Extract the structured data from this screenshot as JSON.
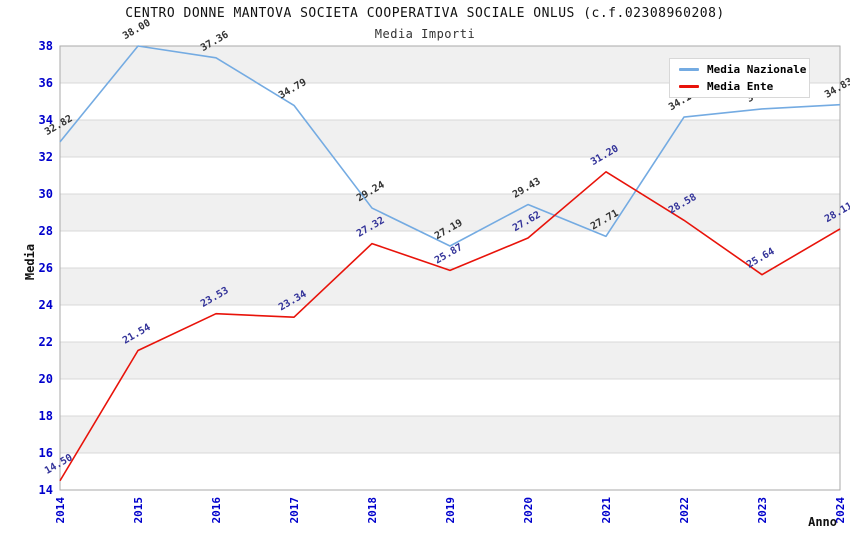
{
  "header": {
    "title": "CENTRO DONNE MANTOVA SOCIETA COOPERATIVA SOCIALE ONLUS (c.f.02308960208)",
    "subtitle": "Media Importi"
  },
  "axes": {
    "x_title": "Anno",
    "y_title": "Media"
  },
  "legend": {
    "position": "top-right",
    "items": [
      {
        "label": "Media Nazionale",
        "color_key": "nazionale"
      },
      {
        "label": "Media Ente",
        "color_key": "ente"
      }
    ]
  },
  "colors": {
    "nazionale": "#74abe2",
    "ente": "#e8130a",
    "label_nazionale": "#333333",
    "label_ente": "#333399",
    "axis_tick_text": "#0000cc",
    "band": "#f0f0f0",
    "grid": "#d8d8d8",
    "border": "#aaaaaa",
    "background": "#ffffff"
  },
  "chart_data": {
    "type": "line",
    "title": "CENTRO DONNE MANTOVA SOCIETA COOPERATIVA SOCIALE ONLUS (c.f.02308960208)",
    "subtitle": "Media Importi",
    "xlabel": "Anno",
    "ylabel": "Media",
    "x": [
      2014,
      2015,
      2016,
      2017,
      2018,
      2019,
      2020,
      2021,
      2022,
      2023,
      2024
    ],
    "ylim": [
      14,
      38
    ],
    "ytick_step": 2,
    "grid": "horizontal-bands",
    "legend_position": "top-right",
    "series": [
      {
        "name": "Media Nazionale",
        "color_key": "nazionale",
        "values": [
          32.82,
          38.0,
          37.36,
          34.79,
          29.24,
          27.19,
          29.43,
          27.71,
          34.16,
          34.6,
          34.83
        ],
        "labels": [
          "32.82",
          "38.00",
          "37.36",
          "34.79",
          "29.24",
          "27.19",
          "29.43",
          "27.71",
          "34.16",
          "34.60",
          "34.83"
        ],
        "labels_hidden_by_legend": [
          8,
          9
        ]
      },
      {
        "name": "Media Ente",
        "color_key": "ente",
        "values": [
          14.5,
          21.54,
          23.53,
          23.34,
          27.32,
          25.87,
          27.62,
          31.2,
          28.58,
          25.64,
          28.11
        ],
        "labels": [
          "14.50",
          "21.54",
          "23.53",
          "23.34",
          "27.32",
          "25.87",
          "27.62",
          "31.20",
          "28.58",
          "25.64",
          "28.11"
        ],
        "labels_hidden_by_legend": []
      }
    ]
  }
}
